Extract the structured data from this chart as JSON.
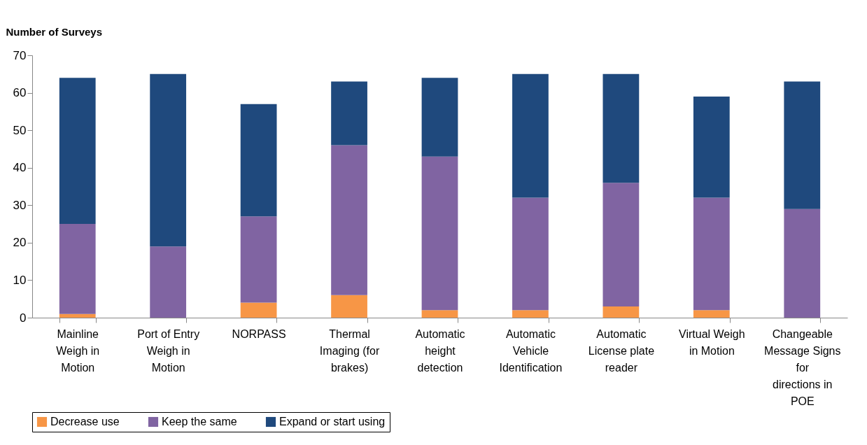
{
  "chart_data": {
    "type": "bar",
    "stacked": true,
    "ylabel": "Number of Surveys",
    "categories": [
      "Mainline Weigh in Motion",
      "Port of Entry Weigh in Motion",
      "NORPASS",
      "Thermal Imaging (for brakes)",
      "Automatic height detection",
      "Automatic Vehicle Identification",
      "Automatic License plate reader",
      "Virtual Weigh in Motion",
      "Changeable Message Signs for directions in POE"
    ],
    "series": [
      {
        "name": "Decrease use",
        "color": "#f79646",
        "values": [
          1,
          0,
          4,
          6,
          2,
          2,
          3,
          2,
          0
        ]
      },
      {
        "name": "Keep the same",
        "color": "#8064a2",
        "values": [
          24,
          19,
          23,
          40,
          41,
          30,
          33,
          30,
          29
        ]
      },
      {
        "name": "Expand or start using",
        "color": "#1f497d",
        "values": [
          39,
          46,
          30,
          17,
          21,
          33,
          29,
          27,
          34
        ]
      }
    ],
    "ylim": [
      0,
      70
    ],
    "yticks": [
      0,
      10,
      20,
      30,
      40,
      50,
      60,
      70
    ],
    "grid": false,
    "legend": "bottom"
  }
}
